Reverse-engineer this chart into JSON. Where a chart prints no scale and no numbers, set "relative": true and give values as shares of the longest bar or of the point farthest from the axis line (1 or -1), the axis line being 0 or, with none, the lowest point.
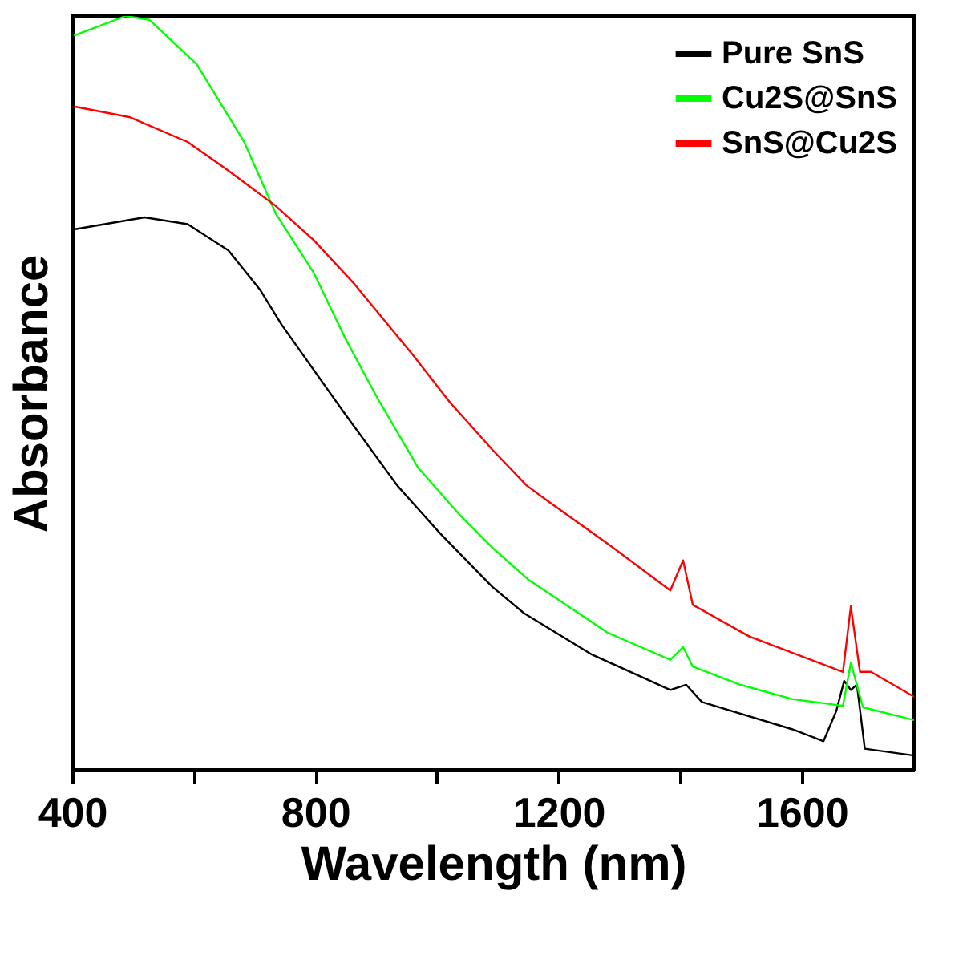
{
  "chart_data": {
    "type": "line",
    "relative": true,
    "xlabel": "Wavelength (nm)",
    "ylabel": "Absorbance",
    "xlim": [
      400,
      1785
    ],
    "xticks": [
      400,
      {
        "value": 600,
        "label": null
      },
      800,
      {
        "value": 1000,
        "label": null
      },
      1200,
      {
        "value": 1400,
        "label": null
      },
      1600
    ],
    "grid": false,
    "legend": "top right",
    "marker": "none",
    "line_style": "solid",
    "series": [
      {
        "name": "Pure SnS",
        "color": "#000000",
        "x": [
          403,
          519,
          590,
          657,
          709,
          745,
          849,
          935,
          1005,
          1091,
          1143,
          1255,
          1384,
          1410,
          1436,
          1584,
          1636,
          1657,
          1670,
          1681,
          1691,
          1704,
          1785
        ],
        "values": [
          0.717,
          0.733,
          0.724,
          0.689,
          0.637,
          0.59,
          0.472,
          0.377,
          0.314,
          0.243,
          0.208,
          0.153,
          0.106,
          0.113,
          0.09,
          0.054,
          0.038,
          0.078,
          0.118,
          0.106,
          0.113,
          0.028,
          0.019
        ]
      },
      {
        "name": "Cu2S@SnS",
        "color": "#00ff00",
        "x": [
          403,
          488,
          527,
          605,
          683,
          735,
          797,
          849,
          901,
          969,
          1039,
          1091,
          1151,
          1281,
          1384,
          1405,
          1421,
          1499,
          1584,
          1668,
          1681,
          1701,
          1785
        ],
        "values": [
          0.974,
          1.0,
          0.995,
          0.936,
          0.833,
          0.738,
          0.66,
          0.573,
          0.495,
          0.401,
          0.337,
          0.295,
          0.252,
          0.182,
          0.146,
          0.163,
          0.137,
          0.113,
          0.094,
          0.085,
          0.142,
          0.083,
          0.066
        ]
      },
      {
        "name": "SnS@Cu2S",
        "color": "#ff0000",
        "x": [
          403,
          494,
          590,
          657,
          735,
          797,
          865,
          961,
          1021,
          1091,
          1148,
          1187,
          1281,
          1384,
          1405,
          1421,
          1514,
          1668,
          1681,
          1696,
          1714,
          1785
        ],
        "values": [
          0.88,
          0.866,
          0.833,
          0.795,
          0.748,
          0.703,
          0.644,
          0.55,
          0.488,
          0.425,
          0.377,
          0.354,
          0.3,
          0.238,
          0.278,
          0.219,
          0.177,
          0.13,
          0.217,
          0.13,
          0.13,
          0.097
        ]
      }
    ]
  }
}
